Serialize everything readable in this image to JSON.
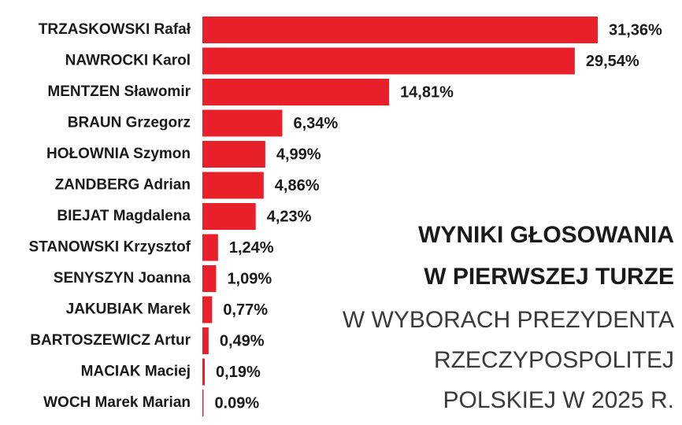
{
  "chart_data": {
    "type": "bar",
    "orientation": "horizontal",
    "title": [
      "WYNIKI GŁOSOWANIA",
      "W PIERWSZEJ TURZE"
    ],
    "subtitle": [
      "W WYBORACH PREZYDENTA",
      "RZECZYPOSPOLITEJ",
      "POLSKIEJ W 2025 R."
    ],
    "categories": [
      "TRZASKOWSKI Rafał",
      "NAWROCKI Karol",
      "MENTZEN Sławomir",
      "BRAUN Grzegorz",
      "HOŁOWNIA Szymon",
      "ZANDBERG Adrian",
      "BIEJAT Magdalena",
      "STANOWSKI Krzysztof",
      "SENYSZYN Joanna",
      "JAKUBIAK Marek",
      "BARTOSZEWICZ Artur",
      "MACIAK Maciej",
      "WOCH Marek Marian"
    ],
    "values": [
      31.36,
      29.54,
      14.81,
      6.34,
      4.99,
      4.86,
      4.23,
      1.24,
      1.09,
      0.77,
      0.49,
      0.19,
      0.09
    ],
    "value_labels": [
      "31,36%",
      "29,54%",
      "14,81%",
      "6,34%",
      "4,99%",
      "4,86%",
      "4,23%",
      "1,24%",
      "1,09%",
      "0,77%",
      "0,49%",
      "0,19%",
      "0.09%"
    ],
    "color": "#e8202a"
  }
}
